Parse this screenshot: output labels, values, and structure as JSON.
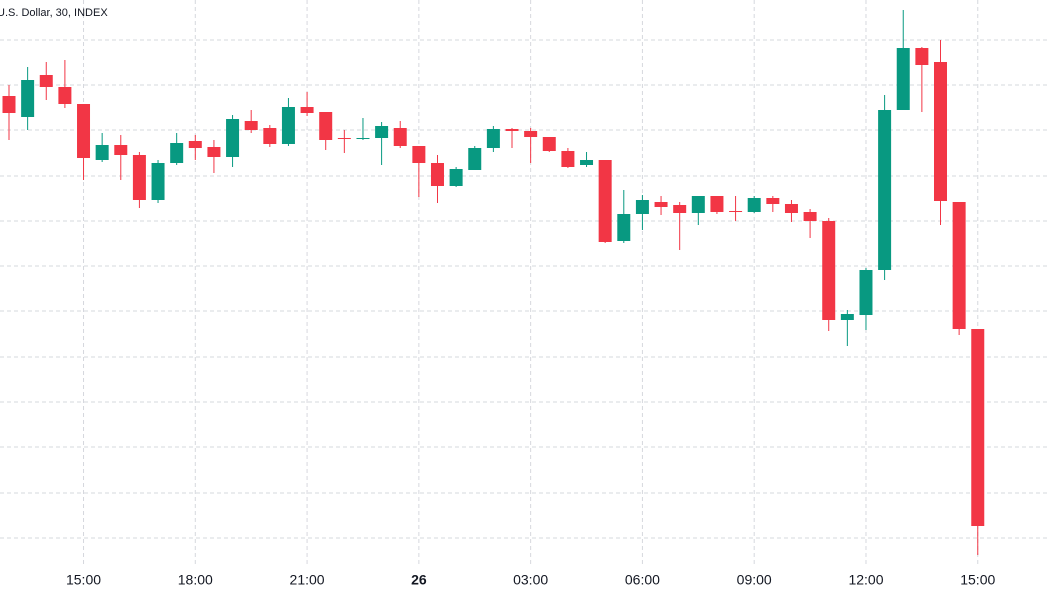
{
  "chart_data": {
    "type": "candlestick",
    "title": "U.S. Dollar, 30, INDEX",
    "categories": [
      null,
      null,
      null,
      null,
      "15:00",
      null,
      null,
      null,
      null,
      null,
      "18:00",
      null,
      null,
      null,
      null,
      null,
      "21:00",
      null,
      null,
      null,
      null,
      null,
      "26",
      null,
      null,
      null,
      null,
      null,
      "03:00",
      null,
      null,
      null,
      null,
      null,
      "06:00",
      null,
      null,
      null,
      null,
      null,
      "09:00",
      null,
      null,
      null,
      null,
      null,
      "12:00",
      null,
      null,
      null,
      null,
      null,
      "15:00"
    ],
    "open": [
      504,
      483,
      525,
      513,
      496,
      440,
      455,
      445,
      400,
      437,
      459,
      453,
      443,
      479,
      472,
      456,
      493,
      488,
      462,
      461,
      462,
      472,
      454,
      437,
      414,
      430,
      452,
      471,
      469,
      463,
      449,
      435,
      440,
      359,
      386,
      398,
      395,
      387,
      404,
      389,
      388,
      402,
      396,
      388,
      379,
      280,
      285,
      330,
      490,
      552,
      538,
      398,
      271
    ],
    "high": [
      515,
      533,
      538,
      540,
      496,
      467,
      465,
      448,
      440,
      467,
      465,
      460,
      485,
      490,
      475,
      502,
      508,
      488,
      470,
      482,
      478,
      479,
      454,
      445,
      433,
      454,
      474,
      472,
      472,
      463,
      452,
      448,
      440,
      410,
      405,
      404,
      398,
      404,
      404,
      404,
      404,
      404,
      400,
      391,
      382,
      290,
      332,
      505,
      590,
      553,
      560,
      398,
      271
    ],
    "low": [
      460,
      470,
      500,
      492,
      420,
      438,
      420,
      392,
      397,
      435,
      440,
      427,
      433,
      467,
      453,
      454,
      484,
      450,
      447,
      460,
      435,
      452,
      403,
      397,
      413,
      430,
      448,
      452,
      437,
      448,
      432,
      433,
      357,
      357,
      370,
      385,
      350,
      375,
      386,
      379,
      387,
      388,
      378,
      362,
      269,
      254,
      270,
      320,
      490,
      488,
      375,
      265,
      45
    ],
    "close": [
      487,
      520,
      513,
      496,
      442,
      455,
      445,
      400,
      437,
      457,
      452,
      443,
      481,
      470,
      456,
      493,
      487,
      460,
      461,
      462,
      474,
      454,
      437,
      414,
      431,
      452,
      471,
      469,
      463,
      449,
      433,
      440,
      358,
      386,
      400,
      393,
      387,
      404,
      388,
      388,
      402,
      396,
      387,
      379,
      280,
      286,
      330,
      490,
      552,
      535,
      399,
      271,
      74
    ],
    "up_color": "#089981",
    "down_color": "#f23645",
    "ylim": [
      35,
      600
    ],
    "yticks": [
      62,
      107,
      153,
      198,
      243,
      289,
      334,
      379,
      424,
      470,
      515,
      560
    ],
    "grid": true
  }
}
